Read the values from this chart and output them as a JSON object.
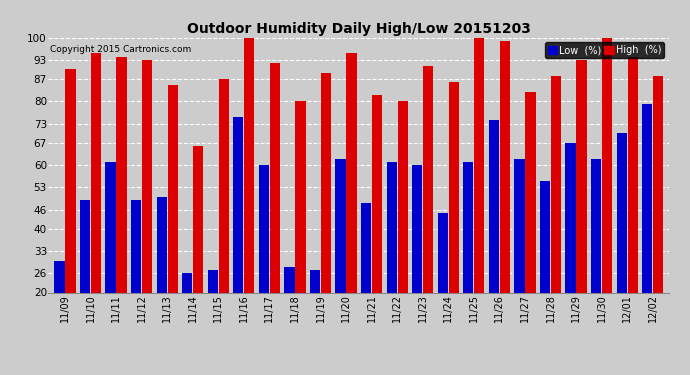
{
  "title": "Outdoor Humidity Daily High/Low 20151203",
  "copyright": "Copyright 2015 Cartronics.com",
  "legend_low": "Low  (%)",
  "legend_high": "High  (%)",
  "low_color": "#0000cc",
  "high_color": "#dd0000",
  "bg_color": "#cccccc",
  "plot_bg_color": "#cccccc",
  "ylim": [
    20,
    100
  ],
  "yticks": [
    20,
    26,
    33,
    40,
    46,
    53,
    60,
    67,
    73,
    80,
    87,
    93,
    100
  ],
  "categories": [
    "11/09",
    "11/10",
    "11/11",
    "11/12",
    "11/13",
    "11/14",
    "11/15",
    "11/16",
    "11/17",
    "11/18",
    "11/19",
    "11/20",
    "11/21",
    "11/22",
    "11/23",
    "11/24",
    "11/25",
    "11/26",
    "11/27",
    "11/28",
    "11/29",
    "11/30",
    "12/01",
    "12/02"
  ],
  "high_values": [
    90,
    95,
    94,
    93,
    85,
    66,
    87,
    100,
    92,
    80,
    89,
    95,
    82,
    80,
    91,
    86,
    100,
    99,
    83,
    88,
    93,
    100,
    94,
    88
  ],
  "low_values": [
    30,
    49,
    61,
    49,
    50,
    26,
    27,
    75,
    60,
    28,
    27,
    62,
    48,
    61,
    60,
    45,
    61,
    74,
    62,
    55,
    67,
    62,
    70,
    79
  ]
}
